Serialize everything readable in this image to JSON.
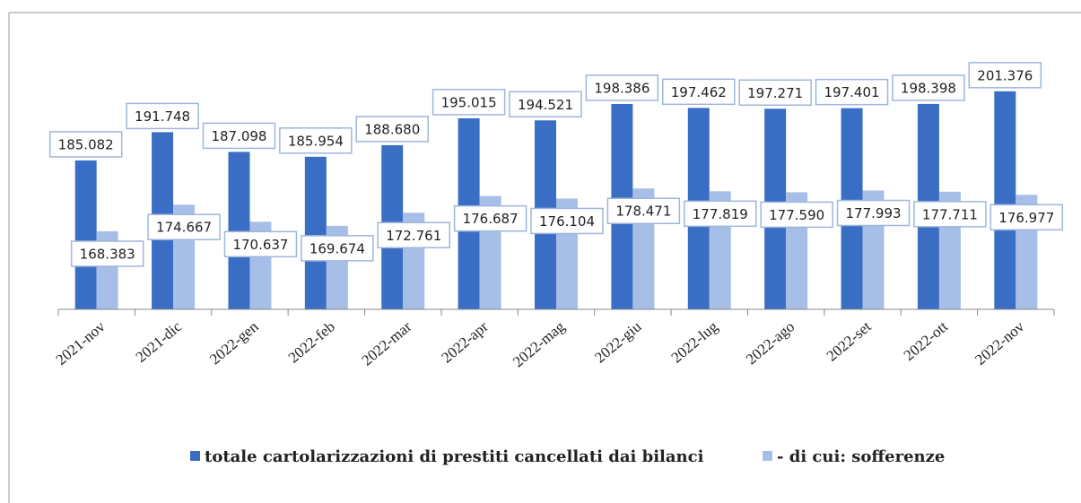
{
  "chart_data": {
    "type": "bar",
    "categories": [
      "2021-nov",
      "2021-dic",
      "2022-gen",
      "2022-feb",
      "2022-mar",
      "2022-apr",
      "2022-mag",
      "2022-giu",
      "2022-lug",
      "2022-ago",
      "2022-set",
      "2022-ott",
      "2022-nov"
    ],
    "series": [
      {
        "name": "totale cartolarizzazioni di prestiti cancellati dai bilanci",
        "color": "#3a6ec4",
        "values": [
          185.082,
          191.748,
          187.098,
          185.954,
          188.68,
          195.015,
          194.521,
          198.386,
          197.462,
          197.271,
          197.401,
          198.398,
          201.376
        ],
        "value_labels": [
          "185.082",
          "191.748",
          "187.098",
          "185.954",
          "188.680",
          "195.015",
          "194.521",
          "198.386",
          "197.462",
          "197.271",
          "197.401",
          "198.398",
          "201.376"
        ]
      },
      {
        "name": "- di cui: sofferenze",
        "color": "#a7bfe6",
        "values": [
          168.383,
          174.667,
          170.637,
          169.674,
          172.761,
          176.687,
          176.104,
          178.471,
          177.819,
          177.59,
          177.993,
          177.711,
          176.977
        ],
        "value_labels": [
          "168.383",
          "174.667",
          "170.637",
          "169.674",
          "172.761",
          "176.687",
          "176.104",
          "178.471",
          "177.819",
          "177.590",
          "177.993",
          "177.711",
          "176.977"
        ]
      }
    ],
    "ylim": [
      150,
      210
    ]
  }
}
